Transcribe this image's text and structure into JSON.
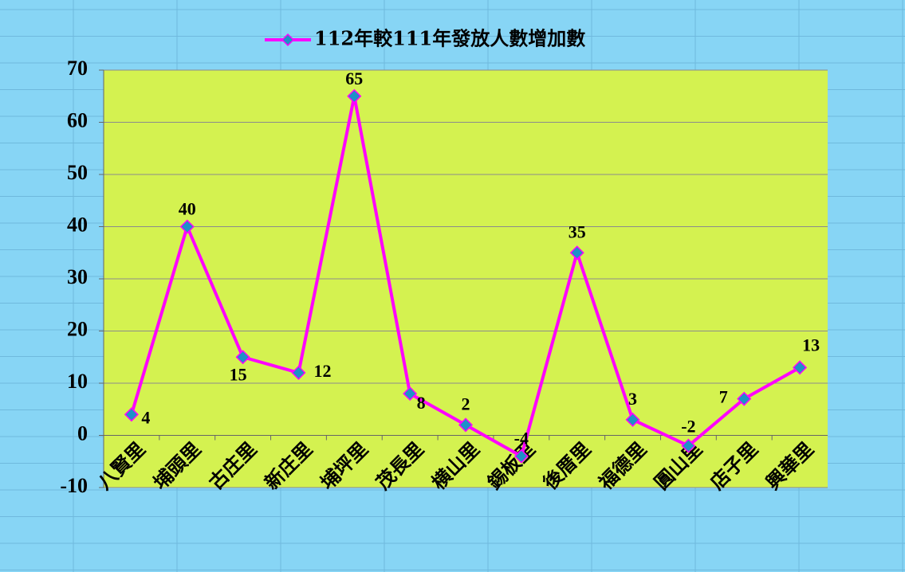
{
  "chart_data": {
    "type": "line",
    "categories": [
      "八賢里",
      "埔頭里",
      "古庄里",
      "新庄里",
      "埔坪里",
      "茂長里",
      "横山里",
      "錫板里",
      "後厝里",
      "福德里",
      "圓山里",
      "店子里",
      "興華里"
    ],
    "series": [
      {
        "name": "112年較111年發放人數增加數",
        "color": "#ff00ff",
        "marker_color": "#1e90c8",
        "values": [
          4,
          40,
          15,
          12,
          65,
          8,
          2,
          -4,
          35,
          3,
          -2,
          7,
          13
        ]
      }
    ],
    "ylim": [
      -10,
      70
    ],
    "yticks": [
      -10,
      0,
      10,
      20,
      30,
      40,
      50,
      60,
      70
    ],
    "grid": true,
    "legend": "top"
  }
}
